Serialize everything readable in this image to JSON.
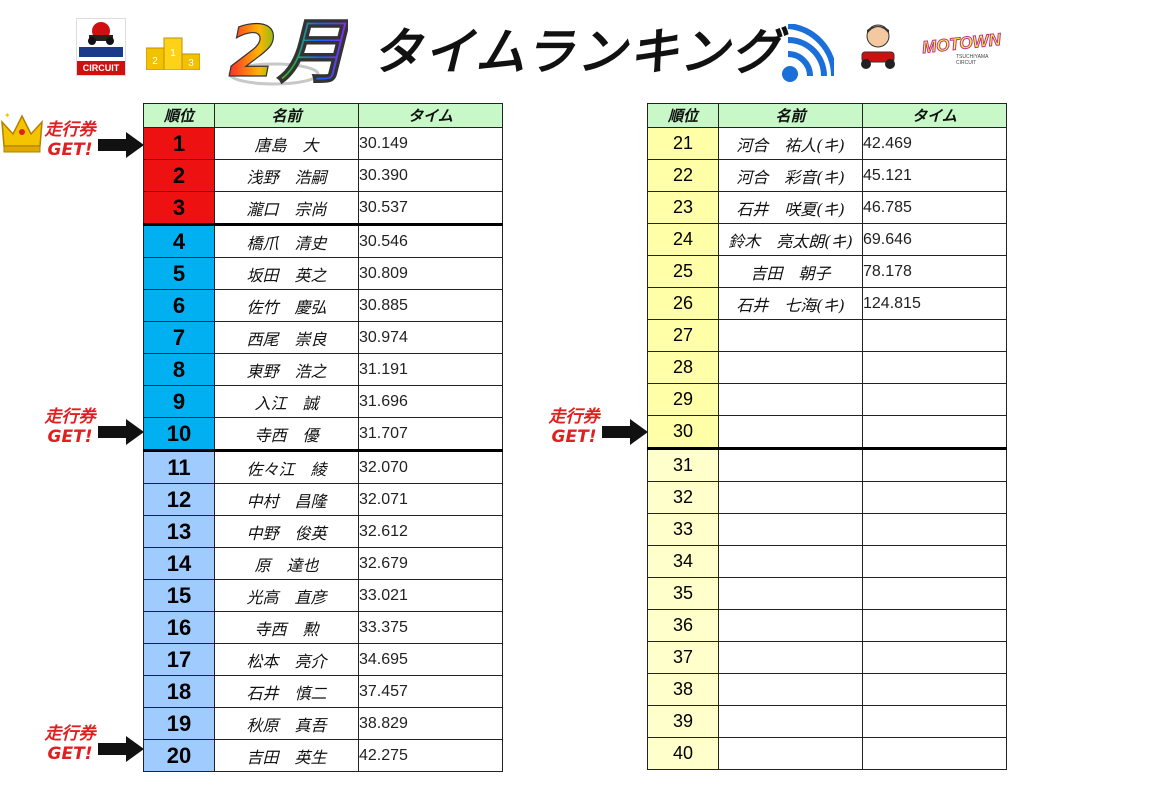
{
  "header": {
    "circuit_logo_text": "CIRCUIT",
    "circuit_logo_brand": "MOTOWN TSUCHIYAMA",
    "month": "2月",
    "title": "タイムランキング",
    "brand_logo": "MOTOWN",
    "brand_logo_sub": "TSUCHIYAMA CIRCUIT",
    "icons": [
      "circuit-logo",
      "podium-icon",
      "signal-icon",
      "driver-icon"
    ]
  },
  "columns": {
    "rank": "順位",
    "name": "名前",
    "time": "タイム"
  },
  "award_label_line1": "走行券",
  "award_label_line2": "GET!",
  "colors": {
    "header_green": "#c8f7c8",
    "top3_red": "#ee1111",
    "top10_cyan": "#00b0f0",
    "rank_blue": "#9fcbff",
    "rank_yellow": "#ffffa8",
    "award_red": "#e02020"
  },
  "left_rows": [
    {
      "rank": "1",
      "name": "唐島　大",
      "time": "30.149"
    },
    {
      "rank": "2",
      "name": "浅野　浩嗣",
      "time": "30.390"
    },
    {
      "rank": "3",
      "name": "瀧口　宗尚",
      "time": "30.537"
    },
    {
      "rank": "4",
      "name": "橋爪　清史",
      "time": "30.546"
    },
    {
      "rank": "5",
      "name": "坂田　英之",
      "time": "30.809"
    },
    {
      "rank": "6",
      "name": "佐竹　慶弘",
      "time": "30.885"
    },
    {
      "rank": "7",
      "name": "西尾　崇良",
      "time": "30.974"
    },
    {
      "rank": "8",
      "name": "東野　浩之",
      "time": "31.191"
    },
    {
      "rank": "9",
      "name": "入江　誠",
      "time": "31.696"
    },
    {
      "rank": "10",
      "name": "寺西　優",
      "time": "31.707"
    },
    {
      "rank": "11",
      "name": "佐々江　綾",
      "time": "32.070"
    },
    {
      "rank": "12",
      "name": "中村　昌隆",
      "time": "32.071"
    },
    {
      "rank": "13",
      "name": "中野　俊英",
      "time": "32.612"
    },
    {
      "rank": "14",
      "name": "原　達也",
      "time": "32.679"
    },
    {
      "rank": "15",
      "name": "光高　直彦",
      "time": "33.021"
    },
    {
      "rank": "16",
      "name": "寺西　勲",
      "time": "33.375"
    },
    {
      "rank": "17",
      "name": "松本　亮介",
      "time": "34.695"
    },
    {
      "rank": "18",
      "name": "石井　慎二",
      "time": "37.457"
    },
    {
      "rank": "19",
      "name": "秋原　真吾",
      "time": "38.829"
    },
    {
      "rank": "20",
      "name": "吉田　英生",
      "time": "42.275"
    }
  ],
  "right_rows": [
    {
      "rank": "21",
      "name": "河合　祐人(キ)",
      "time": "42.469"
    },
    {
      "rank": "22",
      "name": "河合　彩音(キ)",
      "time": "45.121"
    },
    {
      "rank": "23",
      "name": "石井　咲夏(キ)",
      "time": "46.785"
    },
    {
      "rank": "24",
      "name": "鈴木　亮太朗(キ)",
      "time": "69.646"
    },
    {
      "rank": "25",
      "name": "吉田　朝子",
      "time": "78.178"
    },
    {
      "rank": "26",
      "name": "石井　七海(キ)",
      "time": "124.815"
    },
    {
      "rank": "27",
      "name": "",
      "time": ""
    },
    {
      "rank": "28",
      "name": "",
      "time": ""
    },
    {
      "rank": "29",
      "name": "",
      "time": ""
    },
    {
      "rank": "30",
      "name": "",
      "time": ""
    },
    {
      "rank": "31",
      "name": "",
      "time": ""
    },
    {
      "rank": "32",
      "name": "",
      "time": ""
    },
    {
      "rank": "33",
      "name": "",
      "time": ""
    },
    {
      "rank": "34",
      "name": "",
      "time": ""
    },
    {
      "rank": "35",
      "name": "",
      "time": ""
    },
    {
      "rank": "36",
      "name": "",
      "time": ""
    },
    {
      "rank": "37",
      "name": "",
      "time": ""
    },
    {
      "rank": "38",
      "name": "",
      "time": ""
    },
    {
      "rank": "39",
      "name": "",
      "time": ""
    },
    {
      "rank": "40",
      "name": "",
      "time": ""
    }
  ]
}
